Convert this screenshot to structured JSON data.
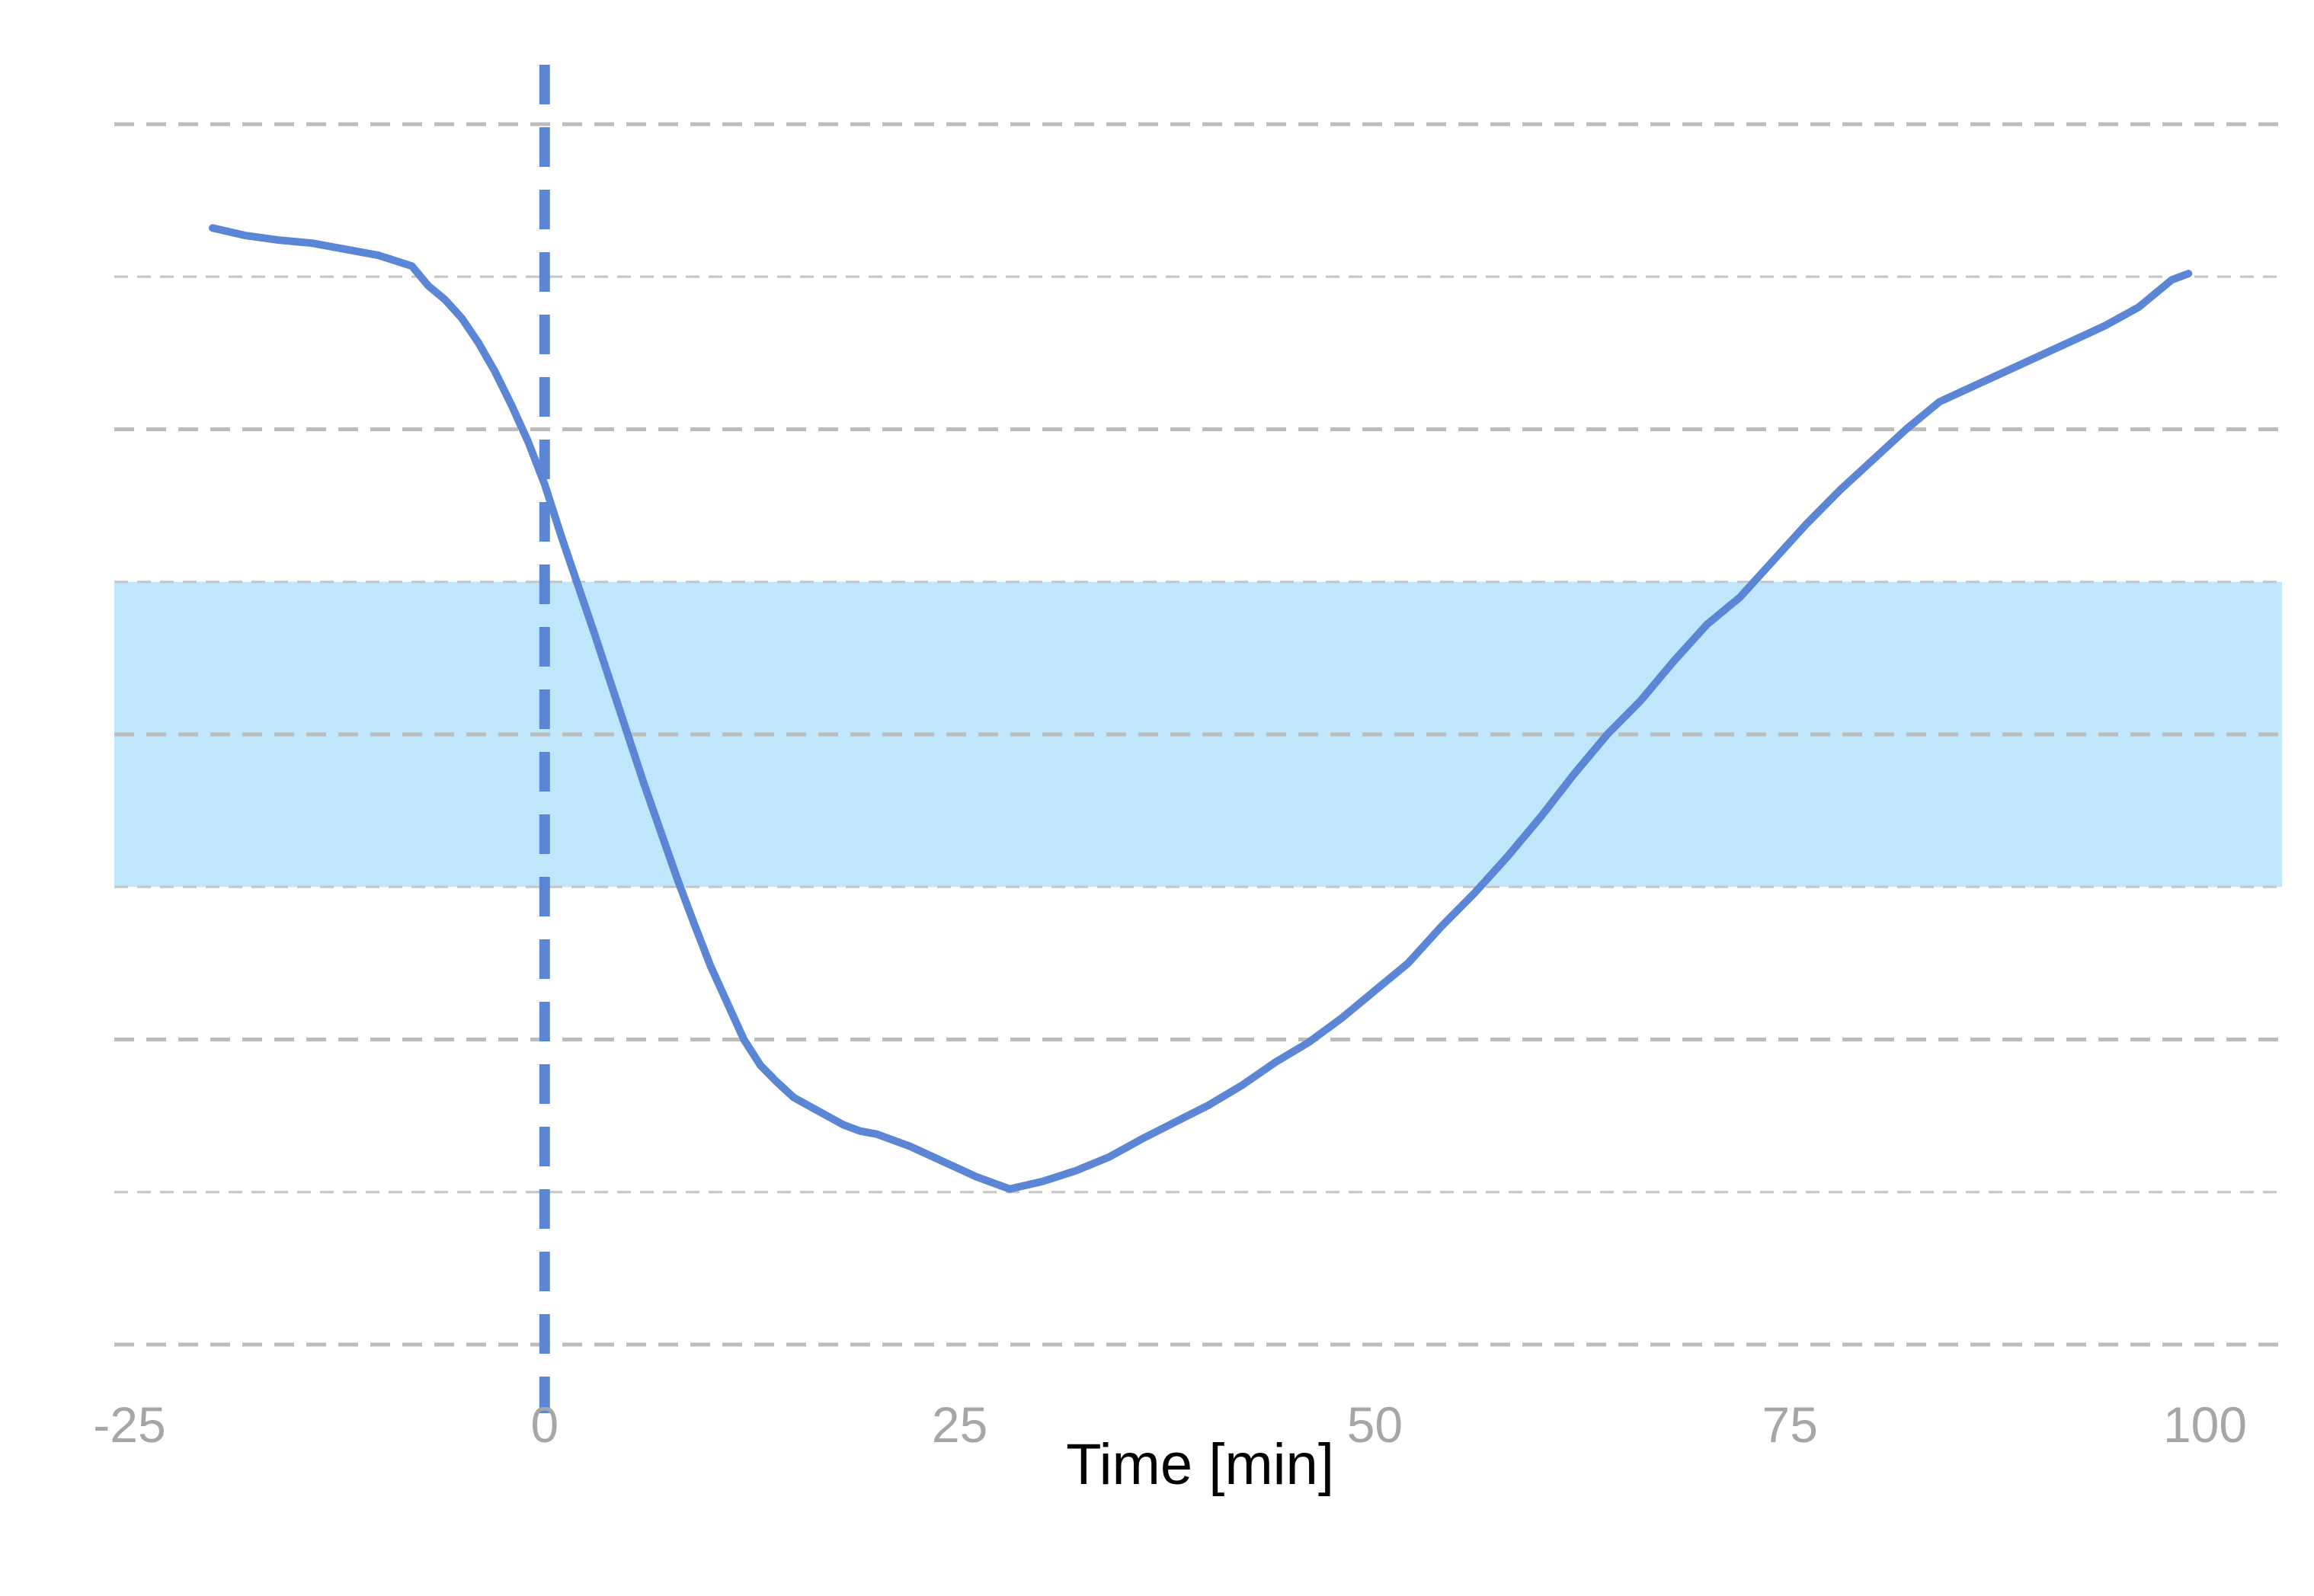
{
  "chart_data": {
    "type": "line",
    "title": "",
    "xlabel": "Time [min]",
    "ylabel": "",
    "xlim": [
      -25,
      100
    ],
    "x_ticks": [
      -25,
      0,
      25,
      50,
      75,
      100
    ],
    "ylim": [
      0,
      8
    ],
    "y_gridlines": [
      0,
      1,
      2,
      3,
      4,
      5,
      6,
      7,
      8
    ],
    "y_tick_labels_visible": false,
    "grid": "horizontal dashed",
    "legend": "none",
    "reference_line": {
      "x": 0,
      "style": "dashed",
      "color": "#5b86d6"
    },
    "shaded_band": {
      "y_from": 3,
      "y_to": 5,
      "color": "#bfe6fb"
    },
    "series": [
      {
        "color": "#5b86d6",
        "x": [
          -20,
          -18,
          -16,
          -14,
          -12,
          -10,
          -8,
          -7,
          -6,
          -5,
          -4,
          -3,
          -2,
          -1,
          0,
          1,
          2,
          3,
          4,
          5,
          6,
          7,
          8,
          9,
          10,
          11,
          12,
          13,
          14,
          15,
          16,
          17,
          18,
          19,
          20,
          22,
          24,
          26,
          28,
          30,
          32,
          34,
          36,
          38,
          40,
          42,
          44,
          46,
          48,
          50,
          52,
          54,
          56,
          58,
          60,
          62,
          64,
          66,
          68,
          70,
          72,
          74,
          76,
          78,
          80,
          82,
          84,
          86,
          88,
          90,
          92,
          94,
          96,
          98,
          99
        ],
        "y": [
          7.32,
          7.27,
          7.24,
          7.22,
          7.18,
          7.14,
          7.07,
          6.94,
          6.85,
          6.73,
          6.57,
          6.38,
          6.16,
          5.92,
          5.64,
          5.3,
          4.98,
          4.66,
          4.33,
          4.0,
          3.67,
          3.36,
          3.05,
          2.76,
          2.48,
          2.24,
          2.0,
          1.83,
          1.72,
          1.62,
          1.56,
          1.5,
          1.44,
          1.4,
          1.38,
          1.3,
          1.2,
          1.1,
          1.02,
          1.07,
          1.14,
          1.23,
          1.35,
          1.46,
          1.57,
          1.7,
          1.85,
          1.98,
          2.14,
          2.32,
          2.5,
          2.74,
          2.96,
          3.2,
          3.46,
          3.74,
          4.0,
          4.22,
          4.48,
          4.72,
          4.9,
          5.14,
          5.38,
          5.6,
          5.8,
          6.0,
          6.18,
          6.28,
          6.38,
          6.48,
          6.58,
          6.68,
          6.8,
          6.98,
          7.02
        ]
      }
    ]
  }
}
